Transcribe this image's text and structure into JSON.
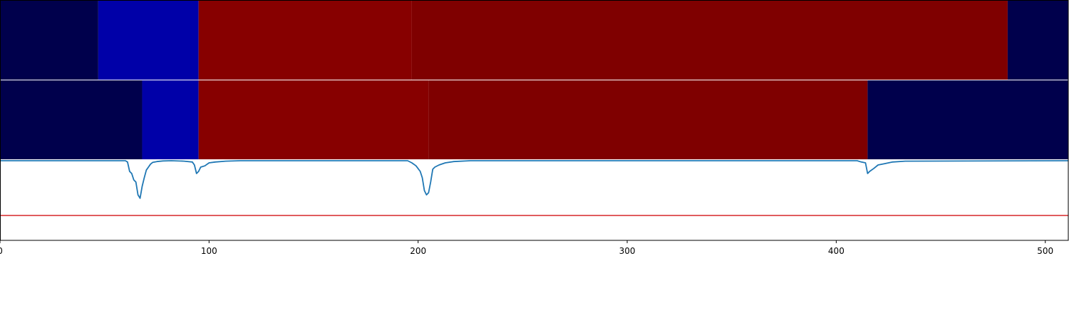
{
  "chart_data": {
    "type": "heatmap",
    "x_range": [
      0,
      511
    ],
    "x_ticks": [
      0,
      100,
      200,
      300,
      400,
      500
    ],
    "x_tick_labels": [
      "0",
      "100",
      "200",
      "300",
      "400",
      "500"
    ],
    "title": "",
    "xlabel": "",
    "ylabel": "",
    "grid": false,
    "legend": "none",
    "rows": [
      {
        "segments": [
          {
            "start": 0,
            "end": 47,
            "color": "#00004c"
          },
          {
            "start": 47,
            "end": 95,
            "color": "#0000a8"
          },
          {
            "start": 95,
            "end": 197,
            "color": "#870000"
          },
          {
            "start": 197,
            "end": 482,
            "color": "#7f0000"
          },
          {
            "start": 482,
            "end": 511,
            "color": "#00004c"
          }
        ]
      },
      {
        "segments": [
          {
            "start": 0,
            "end": 68,
            "color": "#00004c"
          },
          {
            "start": 68,
            "end": 95,
            "color": "#0000a8"
          },
          {
            "start": 95,
            "end": 205,
            "color": "#870000"
          },
          {
            "start": 205,
            "end": 415,
            "color": "#7f0000"
          },
          {
            "start": 415,
            "end": 511,
            "color": "#00004c"
          }
        ]
      }
    ],
    "line_panel": {
      "y_range": [
        -1.0,
        0.02
      ],
      "series": [
        {
          "color": "#1f77b4",
          "x": [
            0,
            60,
            61,
            62,
            63,
            64,
            65,
            66,
            67,
            68,
            69,
            70,
            71,
            72,
            73,
            75,
            78,
            82,
            88,
            92,
            93,
            94,
            95,
            96,
            98,
            100,
            103,
            108,
            115,
            195,
            197,
            199,
            201,
            202,
            203,
            204,
            205,
            206,
            207,
            208,
            210,
            213,
            217,
            225,
            410,
            412,
            414,
            415,
            416,
            418,
            420,
            423,
            427,
            433,
            511
          ],
          "y": [
            0,
            0,
            -0.03,
            -0.25,
            -0.3,
            -0.45,
            -0.5,
            -0.8,
            -0.88,
            -0.6,
            -0.4,
            -0.22,
            -0.15,
            -0.08,
            -0.04,
            -0.02,
            -0.005,
            0,
            -0.01,
            -0.03,
            -0.1,
            -0.3,
            -0.25,
            -0.15,
            -0.12,
            -0.05,
            -0.03,
            -0.01,
            0,
            0,
            -0.05,
            -0.12,
            -0.25,
            -0.4,
            -0.7,
            -0.8,
            -0.75,
            -0.5,
            -0.2,
            -0.15,
            -0.1,
            -0.05,
            -0.02,
            0,
            0,
            -0.03,
            -0.05,
            -0.3,
            -0.25,
            -0.18,
            -0.1,
            -0.07,
            -0.03,
            -0.01,
            0
          ]
        }
      ],
      "threshold": {
        "value": -1.4,
        "color": "#d62728"
      }
    },
    "colors": {
      "dark_navy": "#00004c",
      "blue": "#0000a8",
      "red": "#870000",
      "dark_red": "#7f0000",
      "line": "#1f77b4",
      "threshold": "#d62728"
    }
  }
}
